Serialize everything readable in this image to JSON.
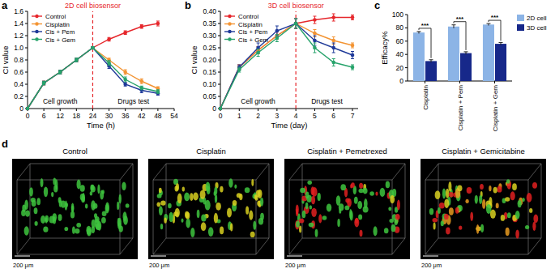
{
  "chart_data": [
    {
      "type": "line",
      "title": "a",
      "x_label": "Time (h)",
      "y_label": "CI value",
      "x": [
        0,
        6,
        12,
        18,
        24,
        30,
        36,
        42,
        48
      ],
      "series": [
        {
          "name": "Control",
          "color": "#e6262b",
          "marker": "circle",
          "values": [
            0,
            0.42,
            0.6,
            0.8,
            1.0,
            1.14,
            1.25,
            1.35,
            1.4
          ],
          "errors": [
            0,
            0.03,
            0.03,
            0.03,
            0.02,
            0.03,
            0.03,
            0.03,
            0.04
          ]
        },
        {
          "name": "Cisplatin",
          "color": "#f39433",
          "marker": "circle",
          "values": [
            0,
            0.42,
            0.6,
            0.8,
            1.0,
            0.8,
            0.6,
            0.45,
            0.33
          ],
          "errors": [
            0,
            0.03,
            0.03,
            0.03,
            0.02,
            0.03,
            0.04,
            0.04,
            0.03
          ]
        },
        {
          "name": "Cis + Pem",
          "color": "#1f3a99",
          "marker": "circle",
          "values": [
            0,
            0.42,
            0.6,
            0.8,
            1.0,
            0.7,
            0.4,
            0.3,
            0.25
          ],
          "errors": [
            0,
            0.03,
            0.03,
            0.03,
            0.02,
            0.04,
            0.03,
            0.04,
            0.03
          ]
        },
        {
          "name": "Cis + Gem",
          "color": "#27a36b",
          "marker": "circle",
          "values": [
            0,
            0.42,
            0.6,
            0.8,
            1.0,
            0.75,
            0.48,
            0.34,
            0.28
          ],
          "errors": [
            0,
            0.03,
            0.03,
            0.03,
            0.02,
            0.04,
            0.04,
            0.03,
            0.03
          ]
        }
      ],
      "xlim": [
        0,
        54
      ],
      "xticks": [
        0,
        6,
        12,
        18,
        24,
        30,
        36,
        42,
        48,
        54
      ],
      "ylim": [
        0,
        1.6
      ],
      "yticks": [
        0,
        0.2,
        0.4,
        0.6,
        0.8,
        {
          "value": 1,
          "label": "1.0"
        },
        1.2,
        1.4,
        1.6
      ],
      "legend": "upper left",
      "annotations": [
        {
          "text": "2D cell biosensor",
          "x": 24
        },
        {
          "text": "Cell growth"
        },
        {
          "text": "Drugs test"
        }
      ]
    },
    {
      "type": "line",
      "title": "b",
      "x_label": "Time (day)",
      "y_label": "CI value",
      "x": [
        0,
        1,
        2,
        3,
        4,
        5,
        6,
        7
      ],
      "series": [
        {
          "name": "Control",
          "color": "#e6262b",
          "marker": "circle",
          "values": [
            0,
            0.17,
            0.24,
            0.3,
            0.35,
            0.365,
            0.375,
            0.375
          ],
          "errors": [
            0,
            0.01,
            0.015,
            0.015,
            0.02,
            0.015,
            0.015,
            0.01
          ]
        },
        {
          "name": "Cisplatin",
          "color": "#f39433",
          "marker": "circle",
          "values": [
            0,
            0.17,
            0.24,
            0.3,
            0.35,
            0.31,
            0.28,
            0.26
          ],
          "errors": [
            0,
            0.01,
            0.015,
            0.015,
            0.02,
            0.015,
            0.015,
            0.01
          ]
        },
        {
          "name": "Cis + Pem",
          "color": "#1f3a99",
          "marker": "circle",
          "values": [
            0,
            0.17,
            0.25,
            0.32,
            0.35,
            0.28,
            0.25,
            0.22
          ],
          "errors": [
            0,
            0.01,
            0.02,
            0.02,
            0.02,
            0.02,
            0.02,
            0.015
          ]
        },
        {
          "name": "Cis + Gem",
          "color": "#27a36b",
          "marker": "circle",
          "values": [
            0,
            0.16,
            0.23,
            0.29,
            0.35,
            0.25,
            0.19,
            0.17
          ],
          "errors": [
            0,
            0.01,
            0.015,
            0.015,
            0.02,
            0.02,
            0.015,
            0.01
          ]
        }
      ],
      "xlim": [
        0,
        7.3
      ],
      "xticks": [
        0,
        1,
        2,
        3,
        4,
        5,
        6,
        7
      ],
      "ylim": [
        0,
        0.4
      ],
      "yticks": [
        0,
        0.05,
        {
          "value": 0.1,
          "label": "0.10"
        },
        0.15,
        {
          "value": 0.2,
          "label": "0.20"
        },
        0.25,
        {
          "value": 0.3,
          "label": "0.30"
        },
        0.35,
        {
          "value": 0.4,
          "label": "0.40"
        }
      ],
      "legend": "upper left",
      "annotations": [
        {
          "text": "3D cell biosensor",
          "x": 4
        },
        {
          "text": "Cell growth"
        },
        {
          "text": "Drugs test"
        }
      ]
    },
    {
      "type": "bar",
      "title": "c",
      "y_label": "Efficacy%",
      "categories": [
        "Cisplatin",
        "Cisplatin + Pem",
        "Cisplatin + Gem"
      ],
      "series": [
        {
          "name": "2D cell",
          "color": "#8cb4e6",
          "values": [
            73,
            82,
            85
          ],
          "errors": [
            1.5,
            2.5,
            1.5
          ]
        },
        {
          "name": "3D cell",
          "color": "#17288a",
          "values": [
            30,
            42,
            56
          ],
          "errors": [
            2,
            2,
            2
          ]
        }
      ],
      "ylim": [
        0,
        100
      ],
      "yticks": [
        0,
        20,
        40,
        60,
        80,
        100
      ],
      "legend": "right",
      "significance": [
        "***",
        "***",
        "***"
      ]
    }
  ],
  "panel_d": {
    "title": "d",
    "images": [
      {
        "title": "Control",
        "scale_bar": "200 μm"
      },
      {
        "title": "Cisplatin",
        "scale_bar": "200 μm"
      },
      {
        "title": "Cisplatin + Pemetrexed",
        "scale_bar": "200 μm"
      },
      {
        "title": "Cisplatin + Gemicitabine",
        "scale_bar": "200 μm"
      }
    ]
  }
}
